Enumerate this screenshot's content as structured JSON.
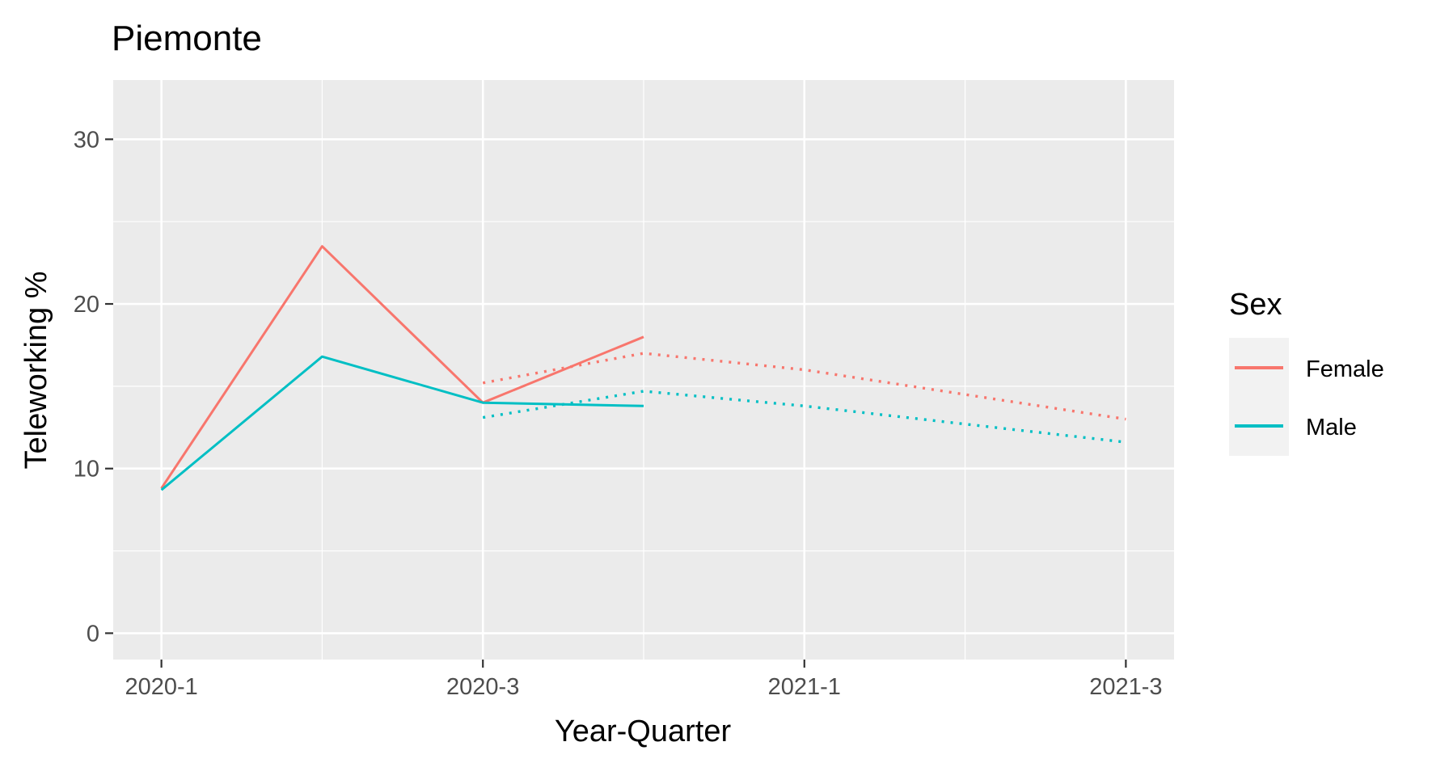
{
  "chart_data": {
    "type": "line",
    "title": "Piemonte",
    "xlabel": "Year-Quarter",
    "ylabel": "Teleworking %",
    "x_categories": [
      "2020-1",
      "2020-2",
      "2020-3",
      "2020-4",
      "2021-1",
      "2021-2",
      "2021-3"
    ],
    "x_tick_labels": [
      "2020-1",
      "2020-3",
      "2021-1",
      "2021-3"
    ],
    "y_ticks": [
      0,
      10,
      20,
      30
    ],
    "ylim": [
      -1.6,
      33.6
    ],
    "grid": true,
    "legend": {
      "title": "Sex",
      "position": "right",
      "entries": [
        "Female",
        "Male"
      ]
    },
    "series": [
      {
        "name": "Female",
        "color": "#f8766d",
        "style": "solid",
        "x": [
          "2020-1",
          "2020-2",
          "2020-3",
          "2020-4"
        ],
        "values": [
          8.8,
          23.5,
          14.0,
          18.0
        ]
      },
      {
        "name": "Male",
        "color": "#00bfc4",
        "style": "solid",
        "x": [
          "2020-1",
          "2020-2",
          "2020-3",
          "2020-4"
        ],
        "values": [
          8.7,
          16.8,
          14.0,
          13.8
        ]
      },
      {
        "name": "Female",
        "color": "#f8766d",
        "style": "dotted",
        "x": [
          "2020-3",
          "2020-4",
          "2021-1",
          "2021-2",
          "2021-3"
        ],
        "values": [
          15.2,
          17.0,
          16.0,
          14.5,
          13.0
        ]
      },
      {
        "name": "Male",
        "color": "#00bfc4",
        "style": "dotted",
        "x": [
          "2020-3",
          "2020-4",
          "2021-1",
          "2021-2",
          "2021-3"
        ],
        "values": [
          13.1,
          14.7,
          13.8,
          12.7,
          11.6
        ]
      }
    ]
  }
}
